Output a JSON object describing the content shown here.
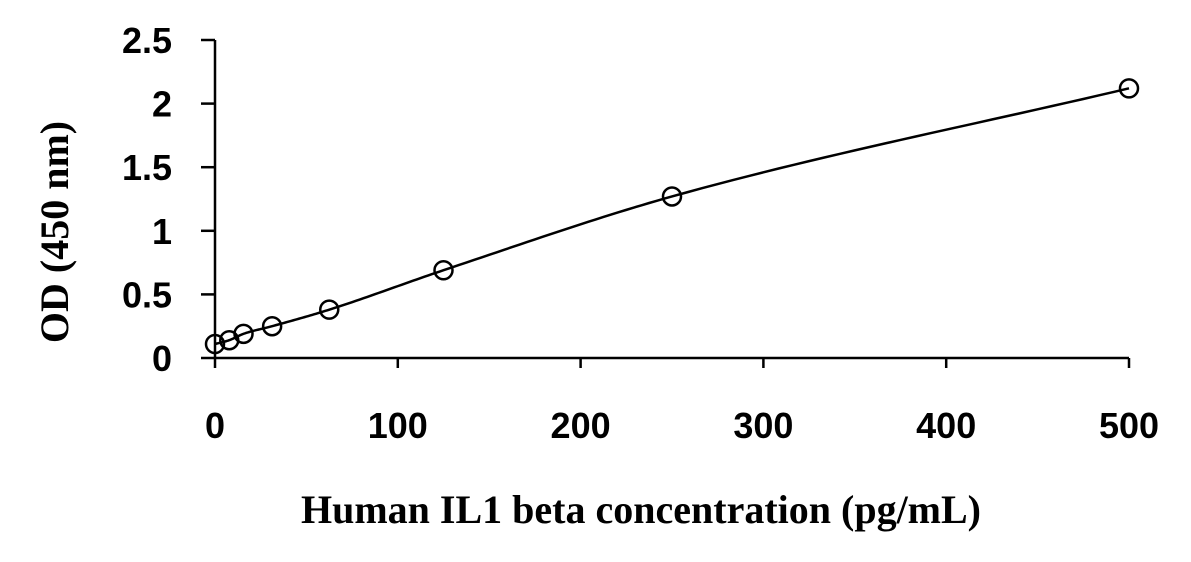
{
  "chart_data": {
    "type": "scatter",
    "title": "",
    "xlabel": "Human IL1 beta concentration (pg/mL)",
    "ylabel": "OD (450 nm)",
    "xlim": [
      0,
      500
    ],
    "ylim": [
      0,
      2.5
    ],
    "x_ticks": [
      0,
      100,
      200,
      300,
      400,
      500
    ],
    "x_tick_labels": [
      "0",
      "100",
      "200",
      "300",
      "400",
      "500"
    ],
    "y_ticks": [
      0,
      0.5,
      1,
      1.5,
      2,
      2.5
    ],
    "y_tick_labels": [
      "0",
      "0.5",
      "1",
      "1.5",
      "2",
      "2.5"
    ],
    "grid": false,
    "legend": "none",
    "marker": "open-circle",
    "fit_line": "smooth curve",
    "series": [
      {
        "x": [
          0,
          7.8,
          15.6,
          31.25,
          62.5,
          125,
          250,
          500
        ],
        "y": [
          0.11,
          0.14,
          0.19,
          0.25,
          0.38,
          0.69,
          1.27,
          2.12
        ]
      }
    ],
    "colors": {
      "line": "#000000",
      "marker": "#000000",
      "background": "#ffffff"
    }
  }
}
